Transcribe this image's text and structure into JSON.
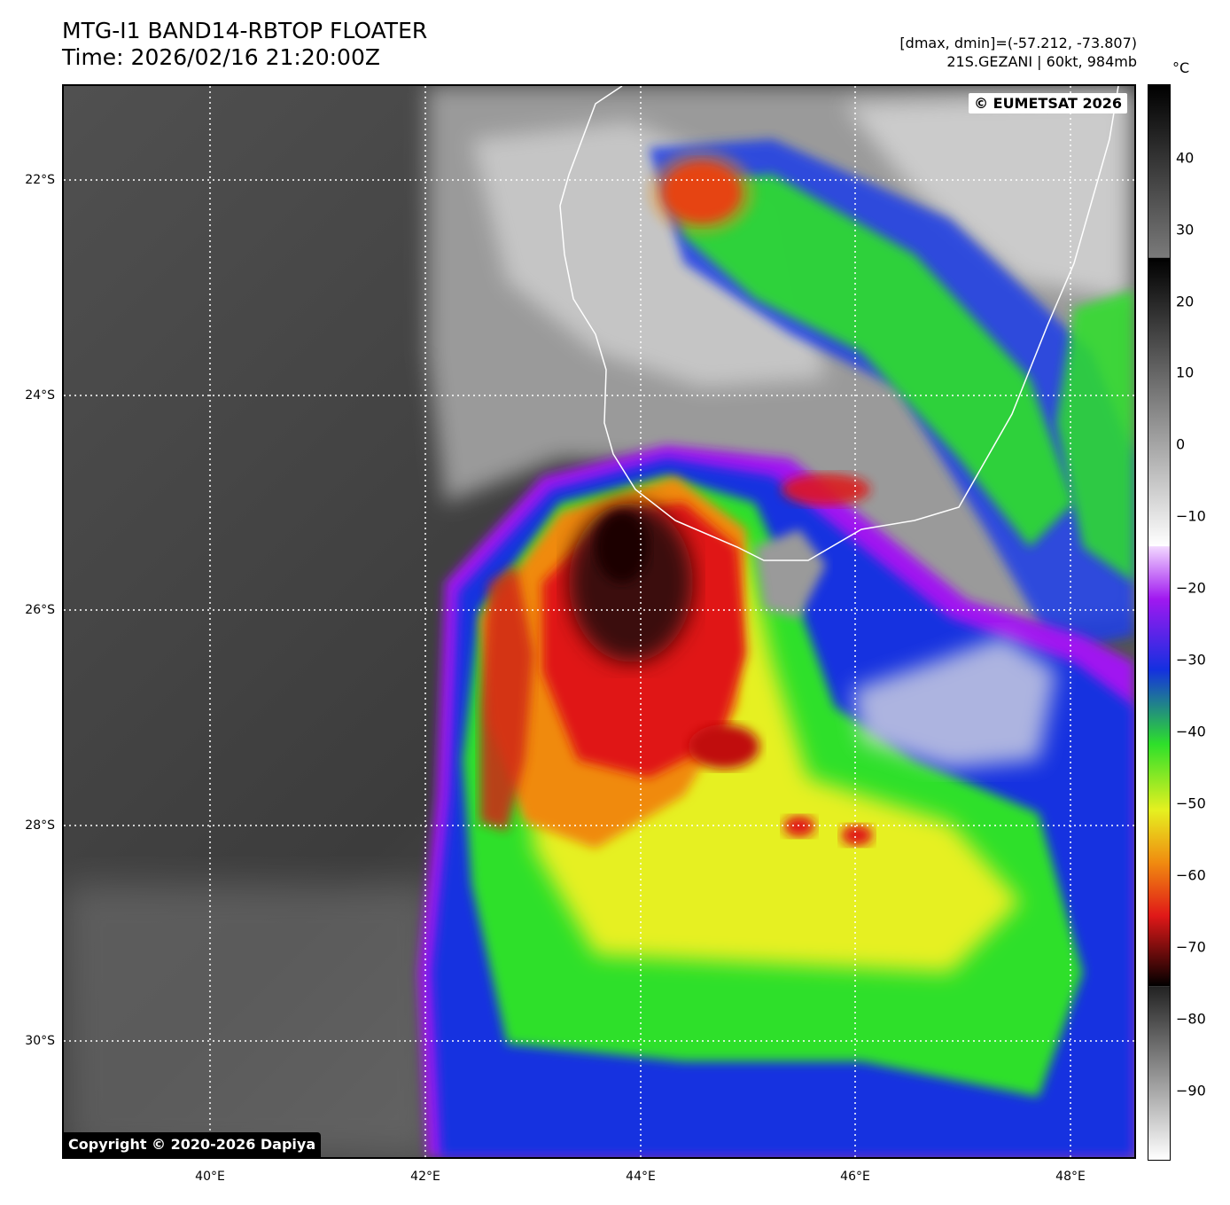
{
  "header": {
    "title_line1": "MTG-I1 BAND14-RBTOP FLOATER",
    "title_line2": "Time: 2026/02/16 21:20:00Z",
    "dminmax": "[dmax, dmin]=(-57.212, -73.807)",
    "storm": "21S.GEZANI | 60kt, 984mb"
  },
  "map": {
    "eumetsat_credit": "© EUMETSAT 2026",
    "copyright": "Copyright © 2020-2026 Dapiya",
    "lat_labels": [
      "22°S",
      "24°S",
      "26°S",
      "28°S",
      "30°S"
    ],
    "lon_labels": [
      "40°E",
      "42°E",
      "44°E",
      "46°E",
      "48°E"
    ]
  },
  "colorbar": {
    "unit": "°C",
    "ticks": [
      "40",
      "30",
      "20",
      "10",
      "0",
      "−10",
      "−20",
      "−30",
      "−40",
      "−50",
      "−60",
      "−70",
      "−80",
      "−90"
    ]
  },
  "colors": {
    "gridline": "#ffffff",
    "coastline": "#ffffff",
    "coldest": "#3a0a08",
    "red": "#e01818",
    "orange": "#f08a10",
    "yellow": "#e6f020",
    "green": "#2ee02a",
    "blue": "#1430e0",
    "magenta": "#a018f0"
  }
}
